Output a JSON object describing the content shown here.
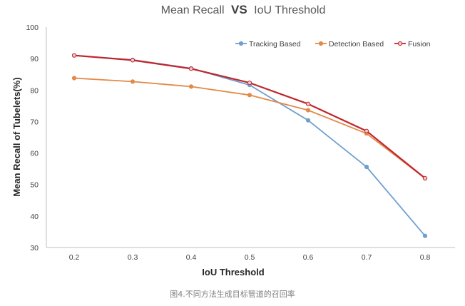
{
  "chart_data": {
    "type": "line",
    "title": {
      "before": "Mean Recall",
      "vs": "VS",
      "after": "IoU Threshold"
    },
    "xlabel": "IoU Threshold",
    "ylabel": "Mean Recall of Tubelets(%)",
    "x": [
      0.2,
      0.3,
      0.4,
      0.5,
      0.6,
      0.7,
      0.8
    ],
    "x_tick_labels": [
      "0.2",
      "0.3",
      "0.4",
      "0.5",
      "0.6",
      "0.7",
      "0.8"
    ],
    "ylim": [
      30,
      100
    ],
    "y_ticks": [
      30,
      40,
      50,
      60,
      70,
      80,
      90,
      100
    ],
    "grid": false,
    "legend_position": "top-right",
    "series": [
      {
        "name": "Tracking Based",
        "color": "#6f9fcf",
        "values": [
          91.0,
          89.6,
          86.9,
          81.6,
          70.4,
          55.6,
          33.7
        ]
      },
      {
        "name": "Detection Based",
        "color": "#e28a47",
        "values": [
          83.8,
          82.7,
          81.1,
          78.4,
          73.6,
          66.2,
          52.0
        ]
      },
      {
        "name": "Fusion",
        "color": "#c0272d",
        "values": [
          91.0,
          89.5,
          86.8,
          82.3,
          75.6,
          67.0,
          52.0
        ]
      }
    ],
    "caption": "图4.不同方法生成目标管道的召回率"
  }
}
